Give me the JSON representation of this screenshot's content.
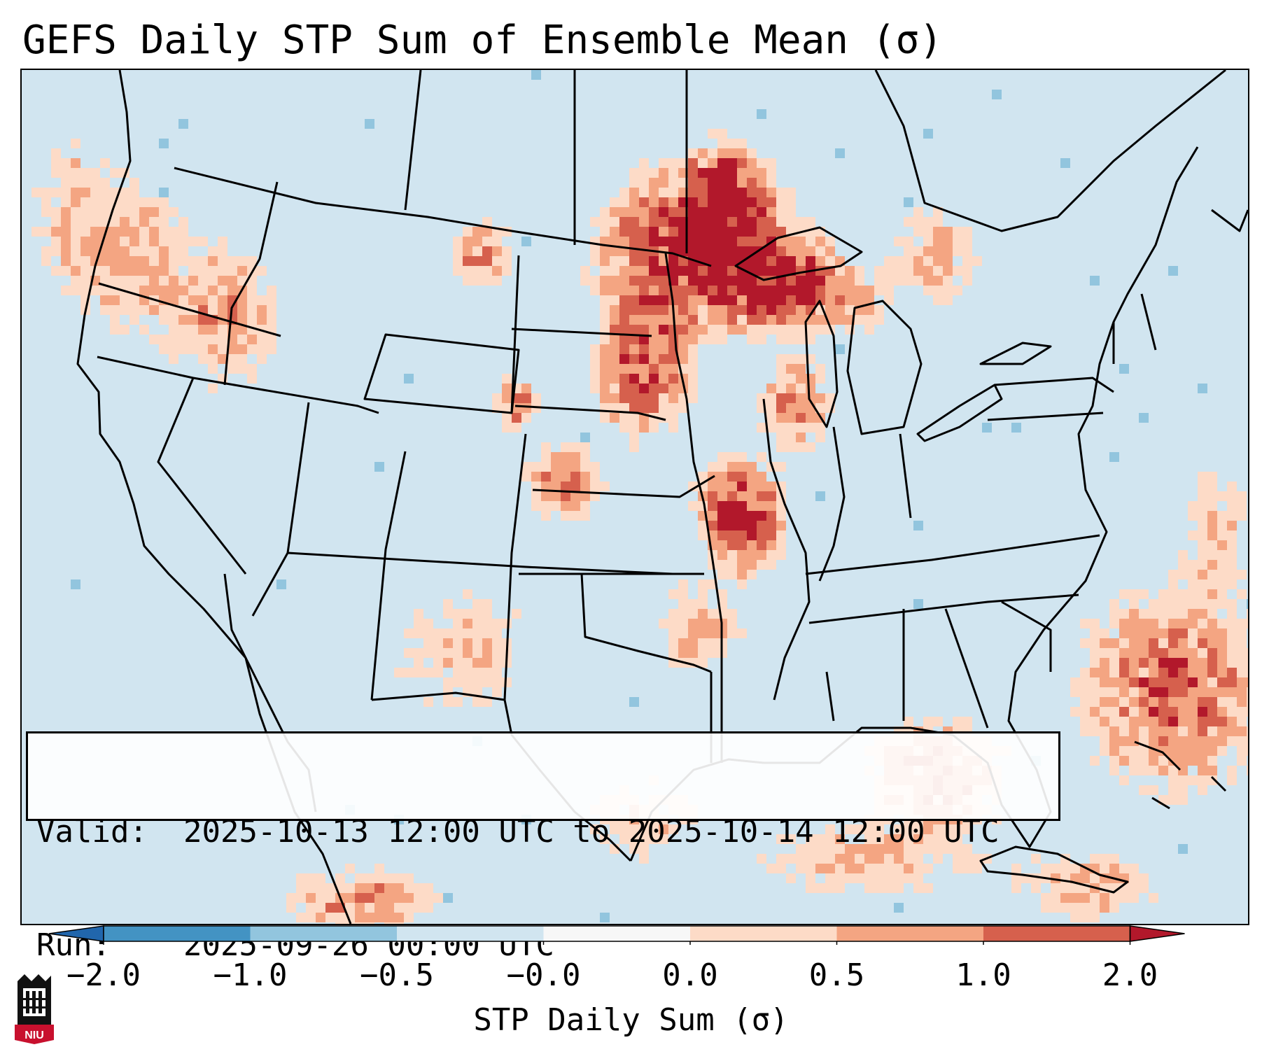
{
  "title": "GEFS Daily STP Sum of Ensemble Mean (σ)",
  "info": {
    "valid_label": "Valid:",
    "valid_value": "2025-10-13 12:00 UTC to 2025-10-14 12:00 UTC",
    "run_label": "Run:",
    "run_value": "2025-09-26 00:00 UTC"
  },
  "colorbar": {
    "label": "STP Daily Sum (σ)",
    "ticks": [
      "−2.0",
      "−1.0",
      "−0.5",
      "−0.0",
      "0.0",
      "0.5",
      "1.0",
      "2.0"
    ],
    "bins": [
      {
        "range": "<-2.0",
        "color": "#2166ac"
      },
      {
        "range": "-2.0 to -1.0",
        "color": "#4393c3"
      },
      {
        "range": "-1.0 to -0.5",
        "color": "#92c5de"
      },
      {
        "range": "-0.5 to -0.0",
        "color": "#d1e5f0"
      },
      {
        "range": "-0.0 to 0.0",
        "color": "#f7f7f7"
      },
      {
        "range": "0.0 to 0.5",
        "color": "#fddbc7"
      },
      {
        "range": "0.5 to 1.0",
        "color": "#f4a582"
      },
      {
        "range": "1.0 to 2.0",
        "color": "#d6604d"
      },
      {
        "range": ">2.0",
        "color": "#b2182b"
      }
    ]
  },
  "map": {
    "background_color": "#d1e5f0",
    "region": "Contiguous United States with southern Canada, northern Mexico, Gulf of Mexico and western Atlantic",
    "max_anomaly_areas": [
      "Upper Midwest (Minnesota / Wisconsin)",
      "eastern Kansas / western Missouri",
      "central Nebraska"
    ]
  },
  "logo": {
    "text": "NIU",
    "icon": "niu-castle-logo-icon"
  }
}
